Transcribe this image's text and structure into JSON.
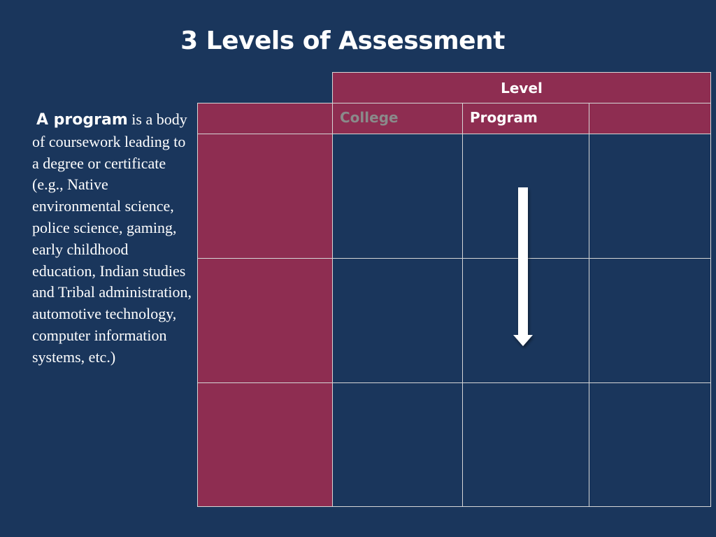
{
  "slide": {
    "title": "3 Levels of Assessment",
    "definition": {
      "term": "A program",
      "text": " is a body of coursework leading to a degree or certificate (e.g., Native environmental science, police science, gaming, early childhood education, Indian studies and Tribal administration, automotive technology, computer information systems, etc.)"
    },
    "table": {
      "header": "Level",
      "columns": [
        "College",
        "Program",
        ""
      ]
    }
  },
  "colors": {
    "background": "#1a365c",
    "accent": "#8e2d51",
    "muted_text": "#8a8a8a",
    "arrow": "#ffffff"
  },
  "icons": [
    "down-arrow-icon"
  ]
}
